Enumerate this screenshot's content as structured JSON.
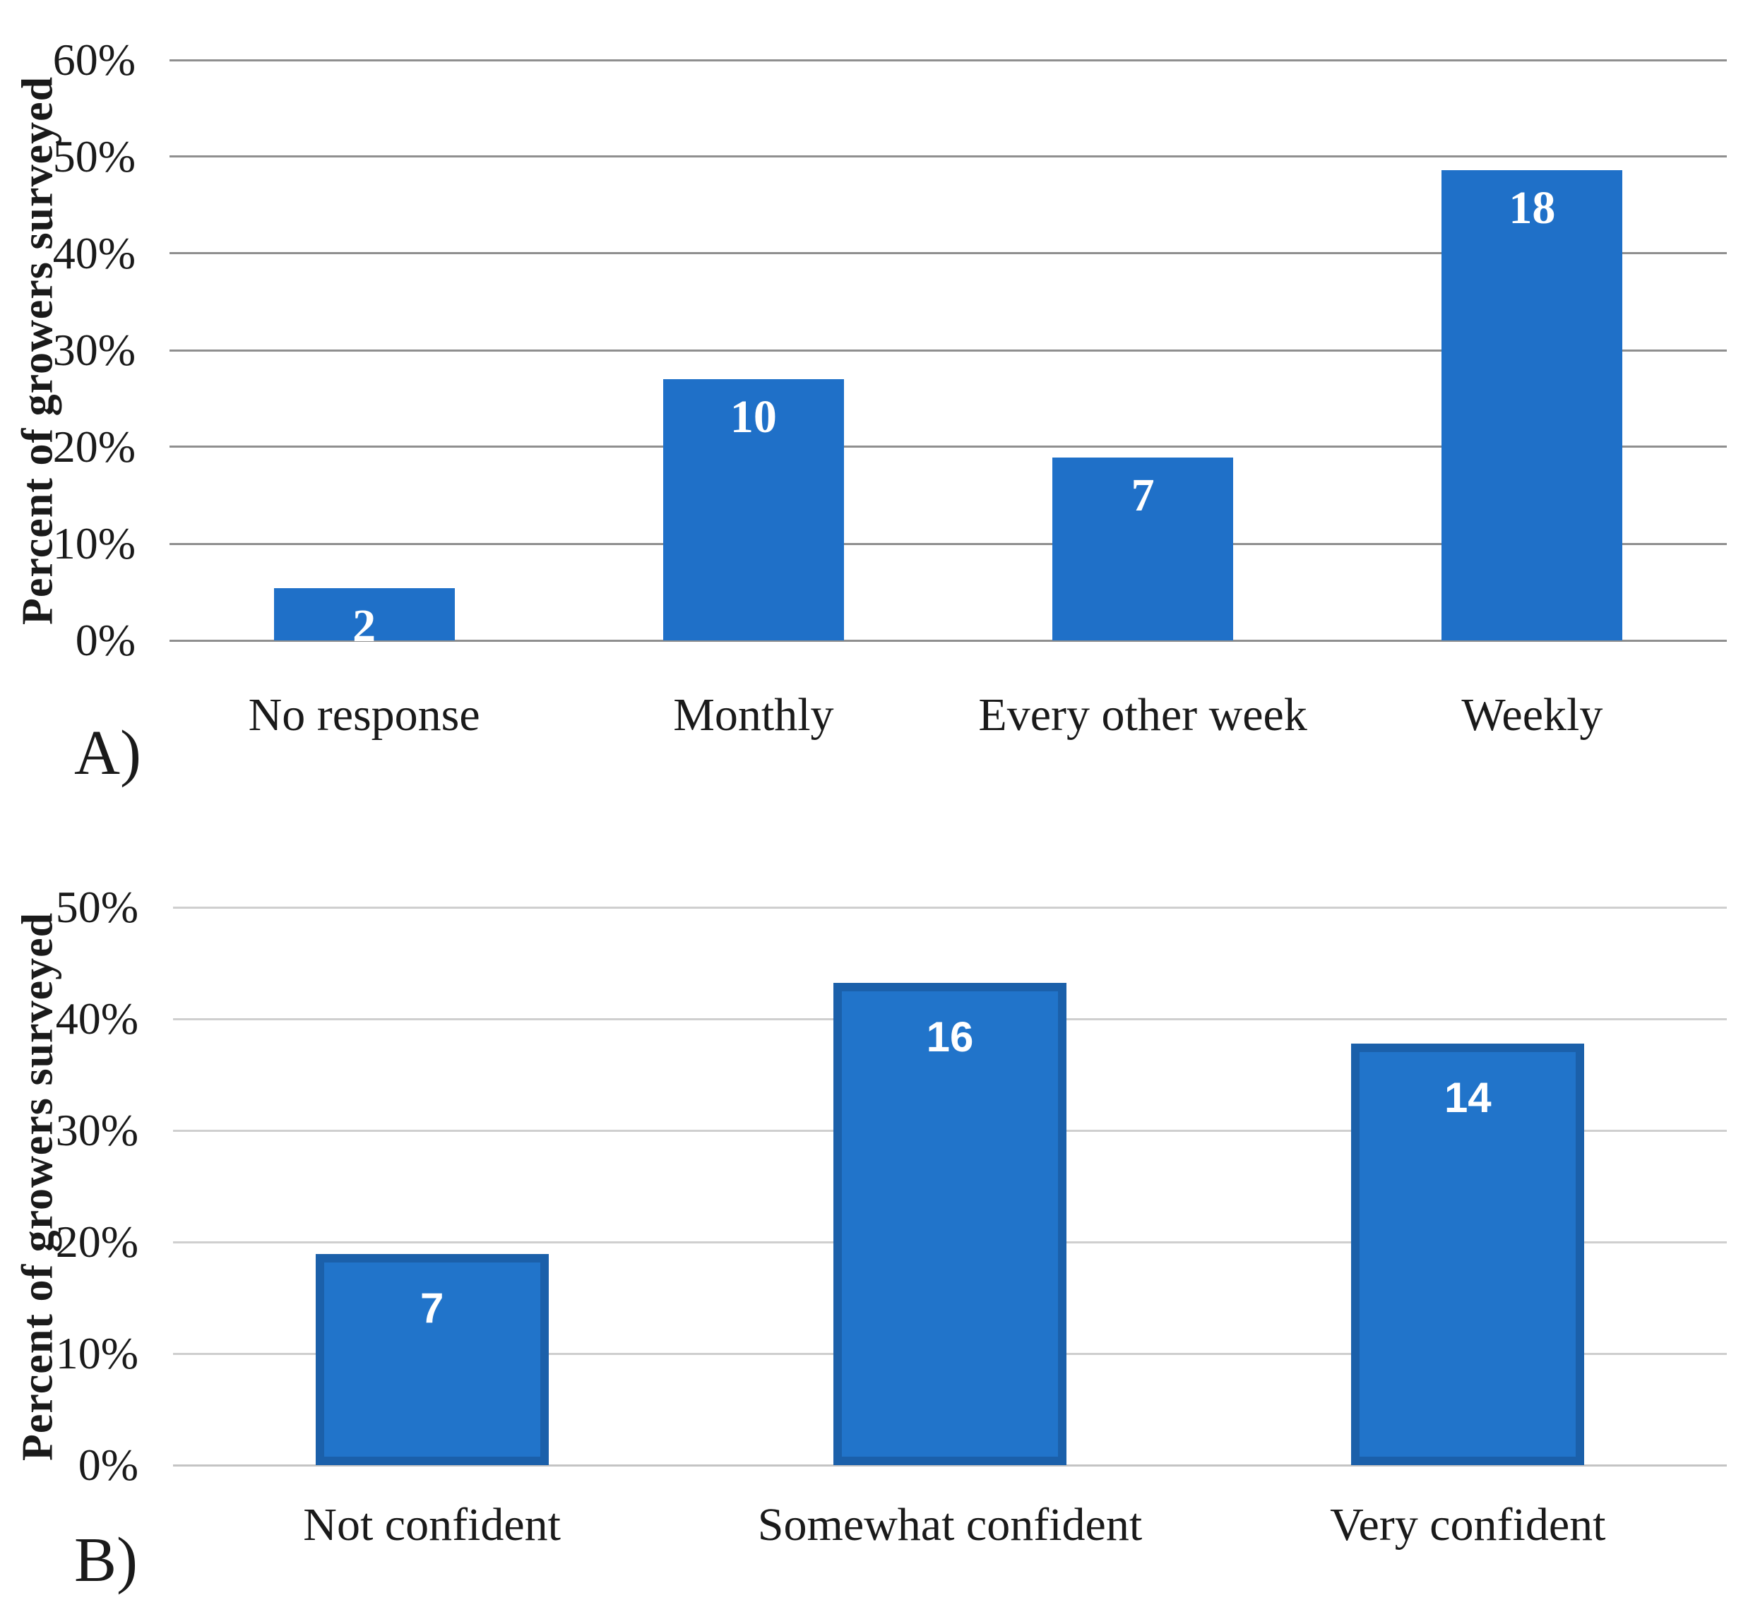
{
  "figure": {
    "background": "#ffffff",
    "panel_count": 2
  },
  "chart_data": [
    {
      "type": "bar",
      "panel_label": "A)",
      "ylabel": "Percent of growers surveyed",
      "xlabel": "",
      "categories": [
        "No response",
        "Monthly",
        "Every other week",
        "Weekly"
      ],
      "values": [
        2,
        10,
        7,
        18
      ],
      "values_pct": [
        5.4,
        27.0,
        18.9,
        48.6
      ],
      "bar_labels": [
        "2",
        "10",
        "7",
        "18"
      ],
      "yticks": [
        "60%",
        "50%",
        "40%",
        "30%",
        "20%",
        "10%",
        "0%"
      ],
      "ylim": [
        0,
        60
      ],
      "grid": true,
      "legend_position": "none",
      "bar_color": "#1f70c8",
      "bar_border_color": null,
      "grid_color": "#8f8f8f",
      "baseline_color": "#8f8f8f",
      "data_label_color": "#ffffff"
    },
    {
      "type": "bar",
      "panel_label": "B)",
      "ylabel": "Percent of growers surveyed",
      "xlabel": "",
      "categories": [
        "Not confident",
        "Somewhat confident",
        "Very confident"
      ],
      "values": [
        7,
        16,
        14
      ],
      "values_pct": [
        18.9,
        43.2,
        37.8
      ],
      "bar_labels": [
        "7",
        "16",
        "14"
      ],
      "yticks": [
        "50%",
        "40%",
        "30%",
        "20%",
        "10%",
        "0%"
      ],
      "ylim": [
        0,
        50
      ],
      "grid": true,
      "legend_position": "none",
      "bar_color": "#2174ca",
      "bar_border_color": "#1b60aa",
      "grid_color": "#cfcfcf",
      "baseline_color": "#c4c4c4",
      "data_label_color": "#ffffff"
    }
  ]
}
